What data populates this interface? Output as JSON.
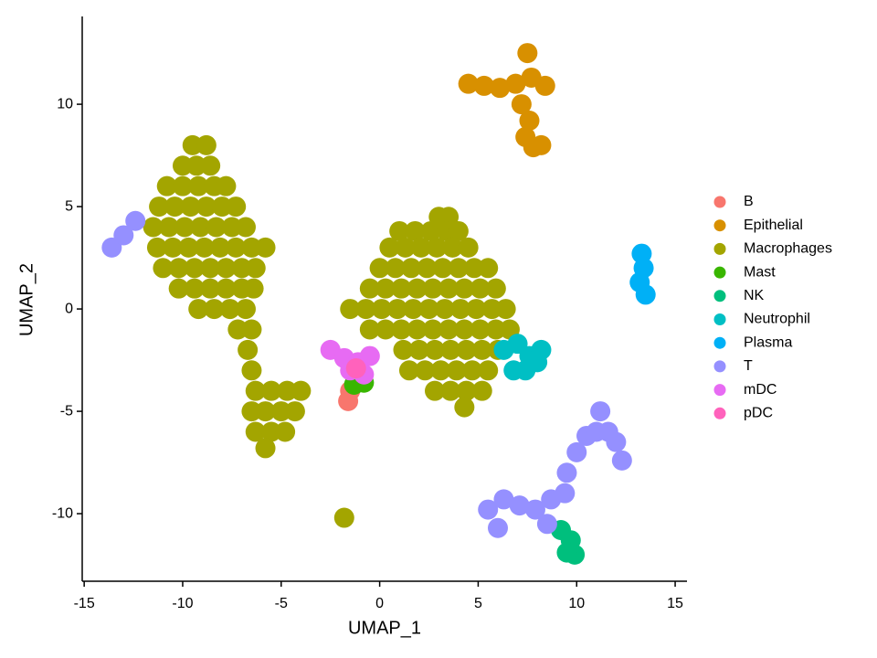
{
  "chart_data": {
    "type": "scatter",
    "xlabel": "UMAP_1",
    "ylabel": "UMAP_2",
    "xlim": [
      -15.1,
      15.6
    ],
    "ylim": [
      -13.3,
      14.2
    ],
    "xticks": [
      -15,
      -10,
      -5,
      0,
      5,
      10,
      15
    ],
    "yticks": [
      -10,
      -5,
      0,
      5,
      10
    ],
    "grid": false,
    "legend": "right",
    "series": [
      {
        "name": "B",
        "color": "#F8766D",
        "x": [
          -1.5,
          -1.6
        ],
        "values": [
          -4,
          -4.5
        ]
      },
      {
        "name": "Epithelial",
        "color": "#D89000",
        "x": [
          4.5,
          5.3,
          6.1,
          6.9,
          7.7,
          8.4,
          7.2,
          7.6,
          7.4,
          7.8,
          8.2,
          7.5
        ],
        "values": [
          11,
          10.9,
          10.8,
          11,
          11.3,
          10.9,
          10,
          9.2,
          8.4,
          7.9,
          8,
          12.5
        ]
      },
      {
        "name": "Macrophages",
        "color": "#A3A500",
        "x": [
          -9.5,
          -8.8,
          -10,
          -9.3,
          -8.6,
          -10.8,
          -10,
          -9.2,
          -8.4,
          -7.8,
          -11.2,
          -10.4,
          -9.6,
          -8.8,
          -8,
          -7.3,
          -11.5,
          -10.7,
          -9.9,
          -9.1,
          -8.3,
          -7.5,
          -6.8,
          -11.3,
          -10.5,
          -9.7,
          -8.9,
          -8.1,
          -7.3,
          -6.5,
          -5.8,
          -11,
          -10.2,
          -9.4,
          -8.6,
          -7.8,
          -7,
          -6.3,
          -10.2,
          -9.4,
          -8.6,
          -7.8,
          -7,
          -6.4,
          -9.2,
          -8.4,
          -7.6,
          -6.8,
          -7.2,
          -6.5,
          -6.7,
          -6.5,
          -6.3,
          -5.5,
          -4.7,
          -4,
          -6.5,
          -5.8,
          -5,
          -4.3,
          -6.3,
          -5.5,
          -4.8,
          -5.8,
          3,
          3.5,
          1,
          1.8,
          2.6,
          3.4,
          4,
          0.5,
          1.3,
          2.1,
          2.9,
          3.7,
          4.5,
          0,
          0.8,
          1.6,
          2.4,
          3.2,
          4,
          4.8,
          5.5,
          -0.5,
          0.3,
          1.1,
          1.9,
          2.7,
          3.5,
          4.3,
          5.1,
          5.9,
          -1.5,
          -0.7,
          0.1,
          0.9,
          1.7,
          2.5,
          3.3,
          4.1,
          4.9,
          5.7,
          6.4,
          -0.5,
          0.3,
          1.1,
          1.9,
          2.7,
          3.5,
          4.3,
          5.1,
          5.9,
          6.6,
          1.2,
          2,
          2.8,
          3.6,
          4.4,
          5.2,
          6,
          1.5,
          2.3,
          3.1,
          3.9,
          4.7,
          5.5,
          2.8,
          3.6,
          4.4,
          5.2,
          4.3,
          -1.8
        ],
        "values": [
          8,
          8,
          7,
          7,
          7,
          6,
          6,
          6,
          6,
          6,
          5,
          5,
          5,
          5,
          5,
          5,
          4,
          4,
          4,
          4,
          4,
          4,
          4,
          3,
          3,
          3,
          3,
          3,
          3,
          3,
          3,
          2,
          2,
          2,
          2,
          2,
          2,
          2,
          1,
          1,
          1,
          1,
          1,
          1,
          0,
          0,
          0,
          0,
          -1,
          -1,
          -2,
          -3,
          -4,
          -4,
          -4,
          -4,
          -5,
          -5,
          -5,
          -5,
          -6,
          -6,
          -6,
          -6.8,
          4.5,
          4.5,
          3.8,
          3.8,
          3.8,
          3.8,
          3.8,
          3,
          3,
          3,
          3,
          3,
          3,
          2,
          2,
          2,
          2,
          2,
          2,
          2,
          2,
          1,
          1,
          1,
          1,
          1,
          1,
          1,
          1,
          1,
          0,
          0,
          0,
          0,
          0,
          0,
          0,
          0,
          0,
          0,
          0,
          -1,
          -1,
          -1,
          -1,
          -1,
          -1,
          -1,
          -1,
          -1,
          -1,
          -2,
          -2,
          -2,
          -2,
          -2,
          -2,
          -2,
          -3,
          -3,
          -3,
          -3,
          -3,
          -3,
          -4,
          -4,
          -4,
          -4,
          -4.8,
          -10.2
        ]
      },
      {
        "name": "Mast",
        "color": "#39B600",
        "x": [
          -1.3,
          -0.8
        ],
        "values": [
          -3.7,
          -3.6
        ]
      },
      {
        "name": "NK",
        "color": "#00BF7D",
        "x": [
          9.2,
          9.7,
          9.9,
          9.5
        ],
        "values": [
          -10.8,
          -11.3,
          -12,
          -11.9
        ]
      },
      {
        "name": "Neutrophil",
        "color": "#00BFC4",
        "x": [
          6.3,
          7,
          7.6,
          8.2,
          7.4,
          8,
          6.8
        ],
        "values": [
          -2,
          -1.7,
          -2.3,
          -2,
          -3,
          -2.6,
          -3
        ]
      },
      {
        "name": "Plasma",
        "color": "#00B0F6",
        "x": [
          13.3,
          13.4,
          13.2,
          13.5
        ],
        "values": [
          2.7,
          2,
          1.3,
          0.7
        ]
      },
      {
        "name": "T",
        "color": "#9590FF",
        "x": [
          -13.6,
          -13,
          -12.4,
          5.5,
          6.3,
          7.1,
          7.9,
          8.7,
          9.4,
          9.5,
          10,
          10.5,
          11,
          11.6,
          11.2,
          12,
          12.3,
          6,
          8.5
        ],
        "values": [
          3,
          3.6,
          4.3,
          -9.8,
          -9.3,
          -9.6,
          -9.8,
          -9.3,
          -9,
          -8,
          -7,
          -6.2,
          -6,
          -6,
          -5,
          -6.5,
          -7.4,
          -10.7,
          -10.5
        ]
      },
      {
        "name": "mDC",
        "color": "#E76BF3",
        "x": [
          -2.5,
          -1.8,
          -1.1,
          -0.5,
          -1.5,
          -0.8
        ],
        "values": [
          -2,
          -2.4,
          -2.6,
          -2.3,
          -3,
          -3.2
        ]
      },
      {
        "name": "pDC",
        "color": "#FF62BC",
        "x": [
          -1.2
        ],
        "values": [
          -2.9
        ]
      }
    ]
  }
}
